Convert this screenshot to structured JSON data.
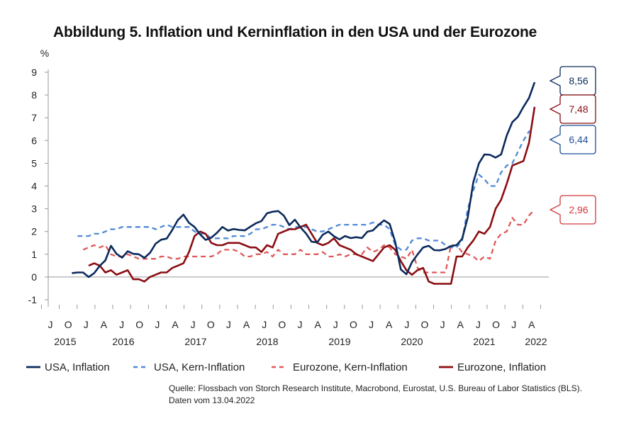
{
  "chart_data": {
    "type": "line",
    "title": "Abbildung 5. Inflation und Kerninflation in den USA und der Eurozone",
    "ylabel": "%",
    "ylim": [
      -1,
      9
    ],
    "yticks": [
      "-1",
      "0",
      "1",
      "2",
      "3",
      "4",
      "5",
      "6",
      "7",
      "8",
      "9"
    ],
    "month_labels": [
      "J",
      "O",
      "J",
      "A",
      "J",
      "O",
      "J",
      "A",
      "J",
      "O",
      "J",
      "A",
      "J",
      "O",
      "J",
      "A",
      "J",
      "O",
      "J",
      "A",
      "J",
      "O",
      "J",
      "A",
      "J",
      "O",
      "J",
      "A"
    ],
    "year_labels": [
      "2015",
      "2016",
      "2017",
      "2018",
      "2019",
      "2020",
      "2021",
      "2022"
    ],
    "series": [
      {
        "name": "USA, Inflation",
        "color": "#0b2a5b",
        "dash": "solid",
        "values": [
          0.17,
          0.2,
          0.2,
          0,
          0.17,
          0.5,
          0.73,
          1.37,
          1.02,
          0.85,
          1.13,
          1.02,
          1.0,
          0.84,
          1.06,
          1.46,
          1.64,
          1.69,
          2.07,
          2.5,
          2.74,
          2.38,
          2.2,
          1.87,
          1.63,
          1.73,
          1.94,
          2.2,
          2.04,
          2.11,
          2.07,
          2.05,
          2.21,
          2.36,
          2.46,
          2.8,
          2.87,
          2.9,
          2.7,
          2.28,
          2.52,
          2.18,
          1.91,
          1.55,
          1.52,
          1.86,
          2.0,
          1.79,
          1.65,
          1.8,
          1.71,
          1.75,
          1.71,
          1.99,
          2.05,
          2.29,
          2.49,
          2.33,
          1.54,
          0.33,
          0.12,
          0.65,
          0.99,
          1.3,
          1.37,
          1.18,
          1.17,
          1.23,
          1.36,
          1.4,
          1.68,
          2.62,
          4.16,
          4.99,
          5.39,
          5.37,
          5.25,
          5.39,
          6.22,
          6.81,
          7.04,
          7.48,
          7.87,
          8.56
        ]
      },
      {
        "name": "USA, Kern-Inflation",
        "color": "#4f8ad8",
        "dash": "dashed",
        "values": [
          1.8,
          1.8,
          1.8,
          1.9,
          1.9,
          2.0,
          2.1,
          2.1,
          2.2,
          2.2,
          2.2,
          2.2,
          2.2,
          2.2,
          2.1,
          2.2,
          2.3,
          2.2,
          2.2,
          2.2,
          2.2,
          2.0,
          1.9,
          1.9,
          1.7,
          1.7,
          1.7,
          1.7,
          1.8,
          1.8,
          1.8,
          1.9,
          2.1,
          2.1,
          2.2,
          2.3,
          2.3,
          2.2,
          2.1,
          2.2,
          2.2,
          2.2,
          2.1,
          2.0,
          2.0,
          2.1,
          2.2,
          2.3,
          2.3,
          2.3,
          2.3,
          2.3,
          2.3,
          2.4,
          2.3,
          2.3,
          2.1,
          1.4,
          1.2,
          1.2,
          1.6,
          1.7,
          1.7,
          1.6,
          1.6,
          1.6,
          1.4,
          1.3,
          1.3,
          1.6,
          3.0,
          3.8,
          4.5,
          4.3,
          4.0,
          4.0,
          4.6,
          4.9,
          5.0,
          5.5,
          6.0,
          6.4,
          6.44
        ]
      },
      {
        "name": "Eurozone, Kern-Inflation",
        "color": "#e0595a",
        "dash": "dashed",
        "values": [
          1.2,
          1.3,
          1.4,
          1.3,
          1.4,
          1.0,
          0.9,
          0.9,
          1.0,
          0.9,
          0.8,
          0.8,
          0.8,
          0.8,
          0.9,
          0.9,
          0.8,
          0.8,
          0.9,
          0.9,
          0.9,
          0.9,
          0.9,
          0.9,
          1.0,
          1.2,
          1.2,
          1.2,
          1.1,
          0.9,
          0.9,
          1.0,
          1.0,
          1.1,
          0.9,
          1.2,
          1.0,
          1.0,
          1.0,
          1.2,
          1.0,
          1.0,
          1.0,
          1.1,
          0.9,
          0.9,
          1.0,
          0.9,
          1.0,
          1.0,
          1.0,
          1.3,
          1.1,
          1.2,
          1.4,
          1.3,
          1.0,
          0.9,
          0.8,
          1.2,
          0.4,
          0.2,
          0.2,
          0.2,
          0.2,
          0.2,
          1.4,
          1.4,
          1.1,
          1.0,
          0.9,
          0.7,
          0.9,
          0.8,
          1.6,
          1.9,
          2.0,
          2.6,
          2.3,
          2.3,
          2.7,
          2.96
        ]
      },
      {
        "name": "Eurozone, Inflation",
        "color": "#8b0d12",
        "dash": "solid",
        "values": [
          0.5,
          0.6,
          0.5,
          0.2,
          0.3,
          0.1,
          0.2,
          0.3,
          -0.1,
          -0.1,
          -0.2,
          0.0,
          0.1,
          0.2,
          0.2,
          0.4,
          0.5,
          0.6,
          1.1,
          1.8,
          2.0,
          1.9,
          1.5,
          1.4,
          1.4,
          1.5,
          1.5,
          1.5,
          1.4,
          1.3,
          1.3,
          1.1,
          1.4,
          1.3,
          1.9,
          2.0,
          2.1,
          2.1,
          2.2,
          2.3,
          1.9,
          1.5,
          1.4,
          1.5,
          1.7,
          1.4,
          1.3,
          1.2,
          1.0,
          0.9,
          0.8,
          0.7,
          1.0,
          1.3,
          1.4,
          1.2,
          0.7,
          0.3,
          0.1,
          0.3,
          0.4,
          -0.2,
          -0.3,
          -0.3,
          -0.3,
          -0.3,
          0.9,
          0.9,
          1.3,
          1.6,
          2.0,
          1.9,
          2.2,
          3.0,
          3.4,
          4.1,
          4.9,
          5.0,
          5.1,
          5.9,
          7.48
        ]
      }
    ],
    "callouts": [
      {
        "series": "USA, Inflation",
        "label": "8,56",
        "color": "#0b2a5b",
        "value": 8.56
      },
      {
        "series": "Eurozone, Inflation",
        "label": "7,48",
        "color": "#8b0d12",
        "value": 7.48
      },
      {
        "series": "USA, Kern-Inflation",
        "label": "6,44",
        "color": "#1f4f96",
        "value": 6.44
      },
      {
        "series": "Eurozone, Kern-Inflation",
        "label": "2,96",
        "color": "#d0383b",
        "value": 2.96
      }
    ],
    "legend": [
      "USA, Inflation",
      "USA, Kern-Inflation",
      "Eurozone, Kern-Inflation",
      "Eurozone, Inflation"
    ],
    "legend_position": "bottom",
    "grid": false
  },
  "source": {
    "line1": "Quelle: Flossbach von Storch Research Institute, Macrobond, Eurostat, U.S. Bureau of Labor Statistics (BLS).",
    "line2": "Daten vom 13.04.2022"
  }
}
